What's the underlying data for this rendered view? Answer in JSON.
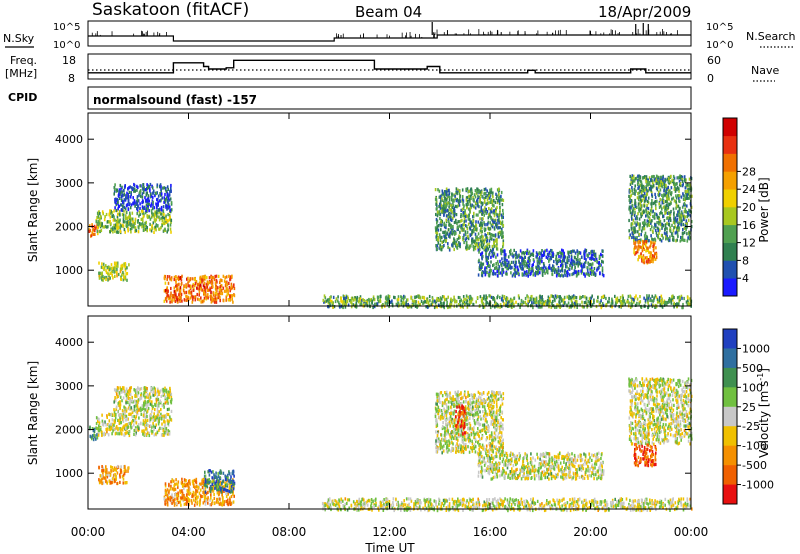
{
  "header": {
    "title": "Saskatoon (fitACF)",
    "beam": "Beam 04",
    "date": "18/Apr/2009"
  },
  "top_panels": {
    "nsky_label": "N.Sky",
    "nsearch_label": "N.Search",
    "noise_ticks": [
      "10^5",
      "10^0"
    ],
    "freq_label": "Freq.",
    "freq_unit": "[MHz]",
    "freq_ticks": [
      "18",
      "8"
    ],
    "nave_ticks": [
      "60",
      "0"
    ],
    "nave_label": "Nave",
    "cpid_label": "CPID",
    "cpid_text": "normalsound (fast) -157"
  },
  "axes": {
    "xlabel": "Time UT",
    "x_ticks": [
      "00:00",
      "04:00",
      "08:00",
      "12:00",
      "16:00",
      "20:00",
      "00:00"
    ],
    "ylabel": "Slant Range [km]",
    "y_ticks": [
      "1000",
      "2000",
      "3000",
      "4000"
    ]
  },
  "chart_data": [
    {
      "type": "heatmap",
      "title": "",
      "xlabel": "Time UT",
      "ylabel": "Slant Range [km]",
      "xlim": [
        "00:00",
        "24:00"
      ],
      "ylim": [
        180,
        4600
      ],
      "colorbar": {
        "label": "Power [dB]",
        "ticks": [
          "4",
          "8",
          "12",
          "16",
          "20",
          "24",
          "28"
        ],
        "colors": [
          "#1a1aff",
          "#2050b0",
          "#308050",
          "#50a050",
          "#a8c820",
          "#f0d000",
          "#f5a000",
          "#f07000",
          "#e83010",
          "#d00000"
        ]
      },
      "echo_regions": [
        {
          "t0": 0.0,
          "t1": 0.4,
          "r0": 1800,
          "r1": 2100,
          "level": 0.75
        },
        {
          "t0": 0.3,
          "t1": 3.3,
          "r0": 1900,
          "r1": 2400,
          "level": 0.4
        },
        {
          "t0": 1.0,
          "t1": 3.3,
          "r0": 2400,
          "r1": 3000,
          "level": 0.15
        },
        {
          "t0": 0.4,
          "t1": 1.6,
          "r0": 800,
          "r1": 1200,
          "level": 0.45
        },
        {
          "t0": 3.0,
          "t1": 5.8,
          "r0": 300,
          "r1": 900,
          "level": 0.75
        },
        {
          "t0": 9.3,
          "t1": 24.0,
          "r0": 180,
          "r1": 450,
          "level": 0.35
        },
        {
          "t0": 13.8,
          "t1": 16.5,
          "r0": 1500,
          "r1": 2900,
          "level": 0.3
        },
        {
          "t0": 15.5,
          "t1": 20.5,
          "r0": 900,
          "r1": 1500,
          "level": 0.2
        },
        {
          "t0": 21.5,
          "t1": 24.0,
          "r0": 1700,
          "r1": 3200,
          "level": 0.3
        },
        {
          "t0": 21.7,
          "t1": 22.6,
          "r0": 1200,
          "r1": 1700,
          "level": 0.7
        }
      ]
    },
    {
      "type": "heatmap",
      "title": "",
      "xlabel": "Time UT",
      "ylabel": "Slant Range [km]",
      "xlim": [
        "00:00",
        "24:00"
      ],
      "ylim": [
        180,
        4600
      ],
      "colorbar": {
        "label": "Velocity [m s^-1]",
        "ticks": [
          "1000",
          "500",
          "100",
          "25",
          "-25",
          "-100",
          "-500",
          "-1000"
        ],
        "colors": [
          "#2040c0",
          "#2f6fa0",
          "#3f9050",
          "#70c040",
          "#c8c8c8",
          "#f0c000",
          "#f59000",
          "#f06000",
          "#e81010"
        ]
      },
      "echo_regions": [
        {
          "t0": 0.0,
          "t1": 0.4,
          "r0": 1800,
          "r1": 2100,
          "level": 0.3
        },
        {
          "t0": 0.3,
          "t1": 3.3,
          "r0": 1900,
          "r1": 2400,
          "level": 0.5
        },
        {
          "t0": 1.0,
          "t1": 3.3,
          "r0": 2400,
          "r1": 3000,
          "level": 0.5
        },
        {
          "t0": 0.4,
          "t1": 1.6,
          "r0": 800,
          "r1": 1200,
          "level": 0.7
        },
        {
          "t0": 3.0,
          "t1": 5.8,
          "r0": 300,
          "r1": 900,
          "level": 0.7
        },
        {
          "t0": 4.6,
          "t1": 5.8,
          "r0": 600,
          "r1": 1100,
          "level": 0.2
        },
        {
          "t0": 9.3,
          "t1": 24.0,
          "r0": 180,
          "r1": 450,
          "level": 0.5
        },
        {
          "t0": 13.8,
          "t1": 16.5,
          "r0": 1500,
          "r1": 2900,
          "level": 0.5
        },
        {
          "t0": 14.6,
          "t1": 15.0,
          "r0": 1900,
          "r1": 2600,
          "level": 0.85
        },
        {
          "t0": 15.5,
          "t1": 20.5,
          "r0": 900,
          "r1": 1500,
          "level": 0.5
        },
        {
          "t0": 21.5,
          "t1": 24.0,
          "r0": 1700,
          "r1": 3200,
          "level": 0.5
        },
        {
          "t0": 21.7,
          "t1": 22.6,
          "r0": 1200,
          "r1": 1700,
          "level": 0.85
        }
      ]
    },
    {
      "type": "line",
      "title": "",
      "name": "frequency",
      "ylabel": "Freq. [MHz]",
      "ylim": [
        8,
        18
      ],
      "x": [
        0,
        3.3,
        3.4,
        4.6,
        4.8,
        5.5,
        5.8,
        10.4,
        11.4,
        13.5,
        14.0,
        17.5,
        17.8,
        21.6,
        22.2,
        24
      ],
      "values": [
        10.5,
        10.5,
        14.5,
        13.0,
        12.0,
        12.5,
        15.5,
        15.5,
        12.0,
        13.0,
        10.5,
        11.5,
        10.5,
        12.0,
        10.5,
        10.5
      ]
    }
  ]
}
